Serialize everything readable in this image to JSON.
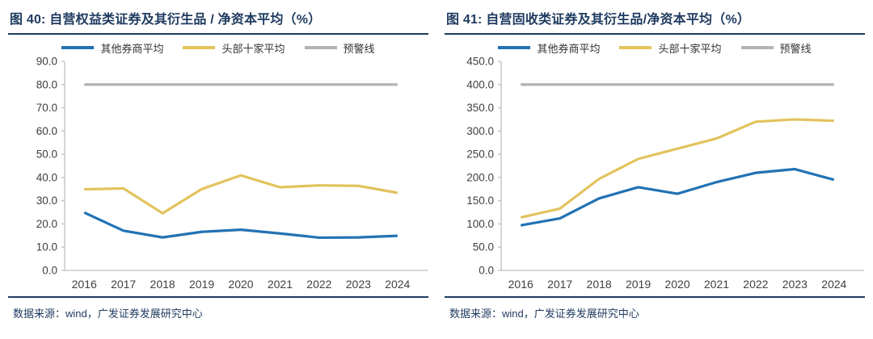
{
  "colors": {
    "title_navy": "#1E3A5F",
    "axis_gray": "#BFBFBF",
    "tick_text": "#404040",
    "series_blue": "#2272B4",
    "series_yellow": "#E2C35D",
    "warning_gray": "#B3B3B3"
  },
  "chart_data": [
    {
      "type": "line",
      "title": "图 40: 自营权益类证券及其衍生品 / 净资本平均（%）",
      "source": "数据来源：wind，广发证券发展研究中心",
      "categories": [
        "2016",
        "2017",
        "2018",
        "2019",
        "2020",
        "2021",
        "2022",
        "2023",
        "2024"
      ],
      "series": [
        {
          "name": "其他券商平均",
          "color": "#2272B4",
          "values": [
            24.9,
            17.1,
            14.2,
            16.6,
            17.5,
            15.9,
            14.1,
            14.2,
            14.9
          ]
        },
        {
          "name": "头部十家平均",
          "color": "#E2C35D",
          "values": [
            34.9,
            35.3,
            24.6,
            35.0,
            40.9,
            35.8,
            36.6,
            36.4,
            33.4
          ]
        },
        {
          "name": "预警线",
          "color": "#B3B3B3",
          "values": [
            80,
            80,
            80,
            80,
            80,
            80,
            80,
            80,
            80
          ]
        }
      ],
      "ylim": [
        0,
        90
      ],
      "ytick_step": 10,
      "legend_position": "top",
      "grid": false
    },
    {
      "type": "line",
      "title": "图 41: 自营固收类证券及其衍生品/净资本平均（%）",
      "source": "数据来源：wind，广发证券发展研究中心",
      "categories": [
        "2016",
        "2017",
        "2018",
        "2019",
        "2020",
        "2021",
        "2022",
        "2023",
        "2024"
      ],
      "series": [
        {
          "name": "其他券商平均",
          "color": "#2272B4",
          "values": [
            97,
            112,
            155,
            179,
            165,
            190,
            210,
            218,
            195
          ]
        },
        {
          "name": "头部十家平均",
          "color": "#E2C35D",
          "values": [
            114,
            133,
            197,
            240,
            262,
            284,
            320,
            325,
            322
          ]
        },
        {
          "name": "预警线",
          "color": "#B3B3B3",
          "values": [
            400,
            400,
            400,
            400,
            400,
            400,
            400,
            400,
            400
          ]
        }
      ],
      "ylim": [
        0,
        450
      ],
      "ytick_step": 50,
      "legend_position": "top",
      "grid": false
    }
  ]
}
